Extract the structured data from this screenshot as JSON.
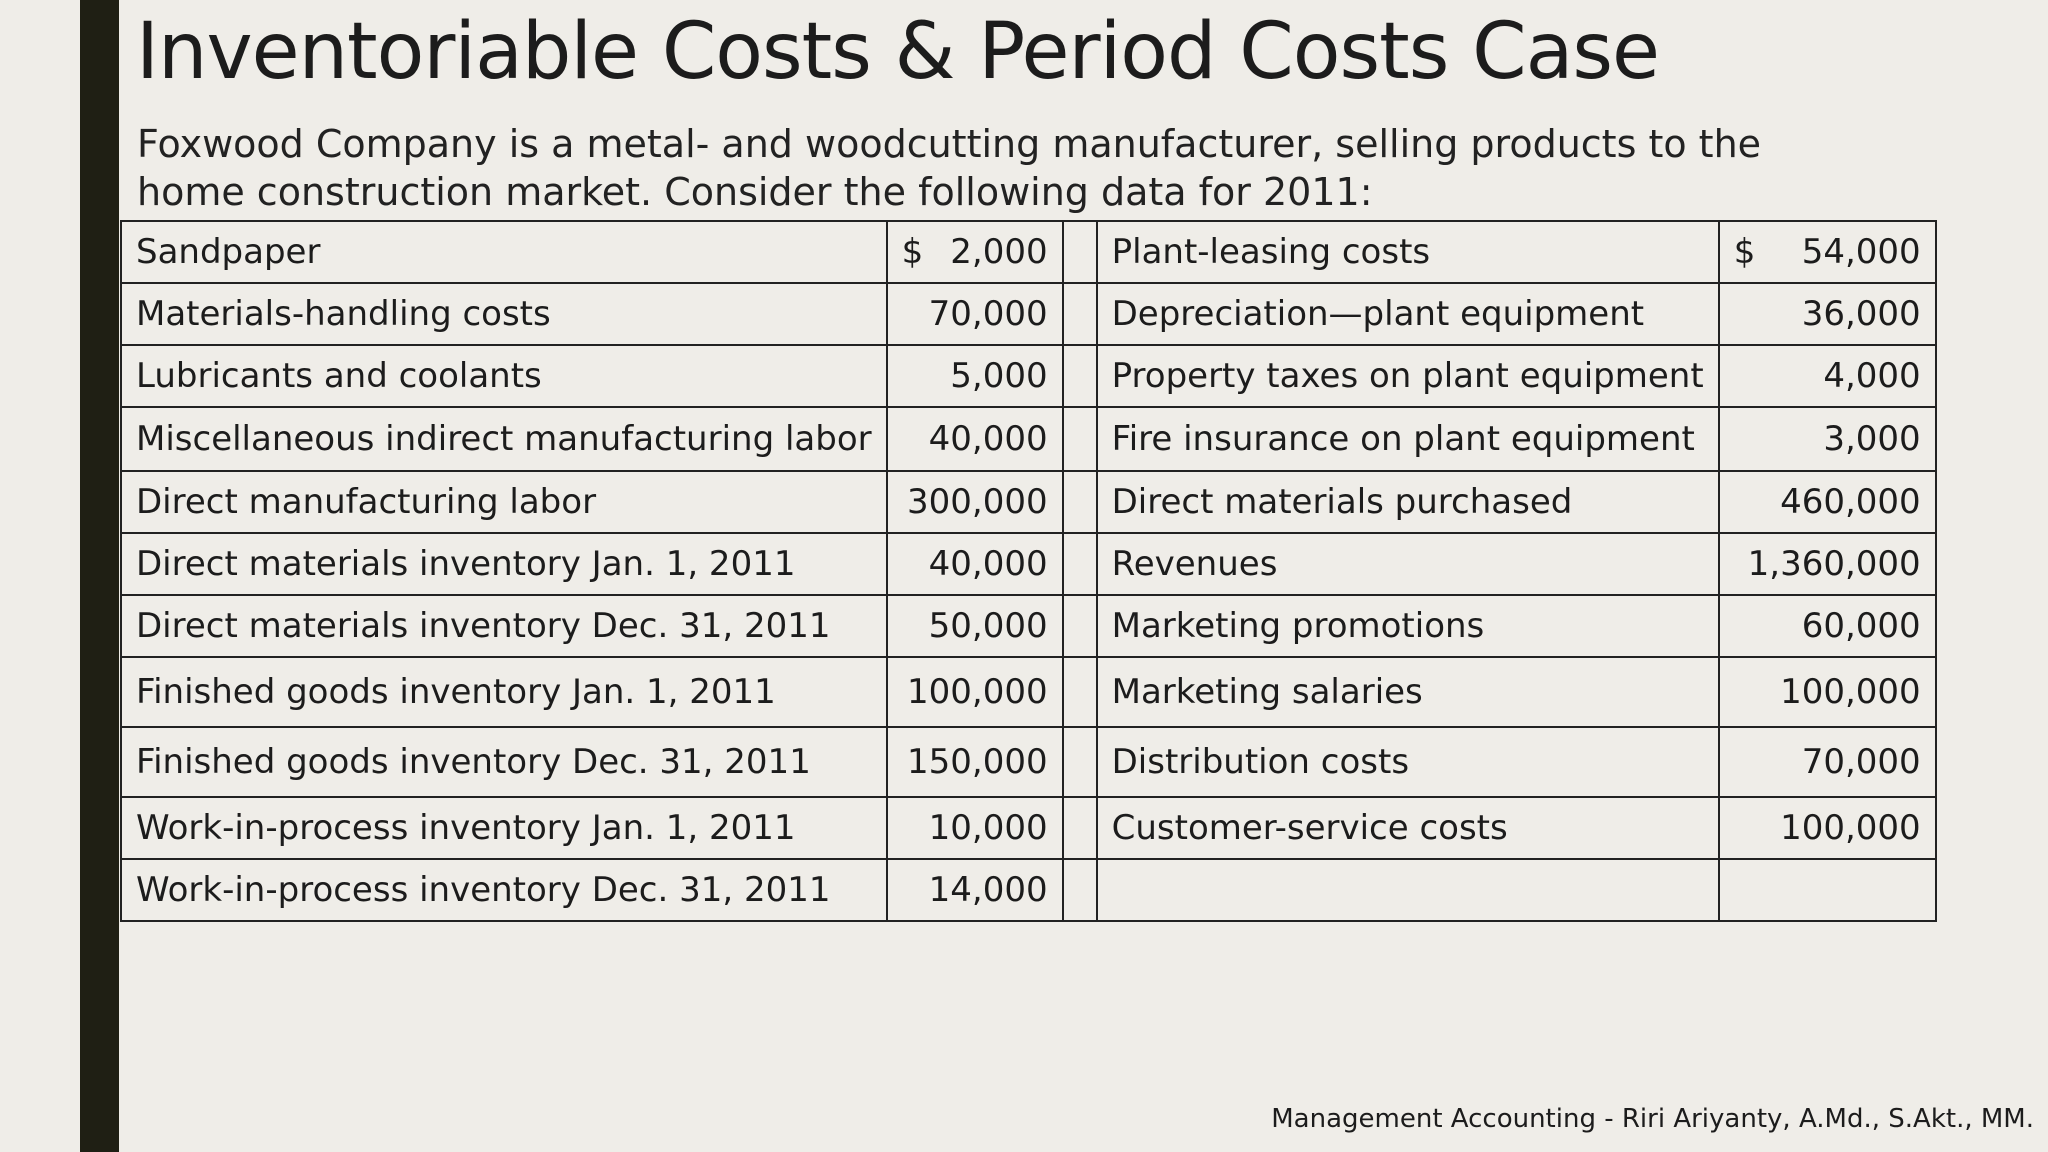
{
  "title": "Inventoriable Costs & Period Costs Case",
  "intro": {
    "line1": "Foxwood Company is a metal- and woodcutting manufacturer, selling products to the",
    "line2": "home construction market. Consider the following data for 2011:"
  },
  "table": {
    "currency_symbol": "$",
    "rows": [
      {
        "left_label": "Sandpaper",
        "left_amount": "2,000",
        "right_label": "Plant-leasing costs",
        "right_amount": "54,000"
      },
      {
        "left_label": "Materials-handling costs",
        "left_amount": "70,000",
        "right_label": "Depreciation—plant equipment",
        "right_amount": "36,000"
      },
      {
        "left_label": "Lubricants and coolants",
        "left_amount": "5,000",
        "right_label": "Property taxes on plant equipment",
        "right_amount": "4,000"
      },
      {
        "left_label": "Miscellaneous indirect manufacturing labor",
        "left_amount": "40,000",
        "right_label": "Fire insurance on plant equipment",
        "right_amount": "3,000"
      },
      {
        "left_label": "Direct manufacturing labor",
        "left_amount": "300,000",
        "right_label": "Direct materials purchased",
        "right_amount": "460,000"
      },
      {
        "left_label": "Direct materials inventory Jan. 1, 2011",
        "left_amount": "40,000",
        "right_label": "Revenues",
        "right_amount": "1,360,000"
      },
      {
        "left_label": "Direct materials inventory Dec. 31, 2011",
        "left_amount": "50,000",
        "right_label": "Marketing promotions",
        "right_amount": "60,000"
      },
      {
        "left_label": "Finished goods inventory Jan. 1, 2011",
        "left_amount": "100,000",
        "right_label": "Marketing salaries",
        "right_amount": "100,000"
      },
      {
        "left_label": "Finished goods inventory Dec. 31, 2011",
        "left_amount": "150,000",
        "right_label": "Distribution costs",
        "right_amount": "70,000"
      },
      {
        "left_label": "Work-in-process inventory Jan. 1, 2011",
        "left_amount": "10,000",
        "right_label": "Customer-service costs",
        "right_amount": "100,000"
      },
      {
        "left_label": "Work-in-process inventory Dec. 31, 2011",
        "left_amount": "14,000",
        "right_label": "",
        "right_amount": ""
      }
    ]
  },
  "footer": "Management Accounting - Riri Ariyanty, A.Md., S.Akt., MM."
}
